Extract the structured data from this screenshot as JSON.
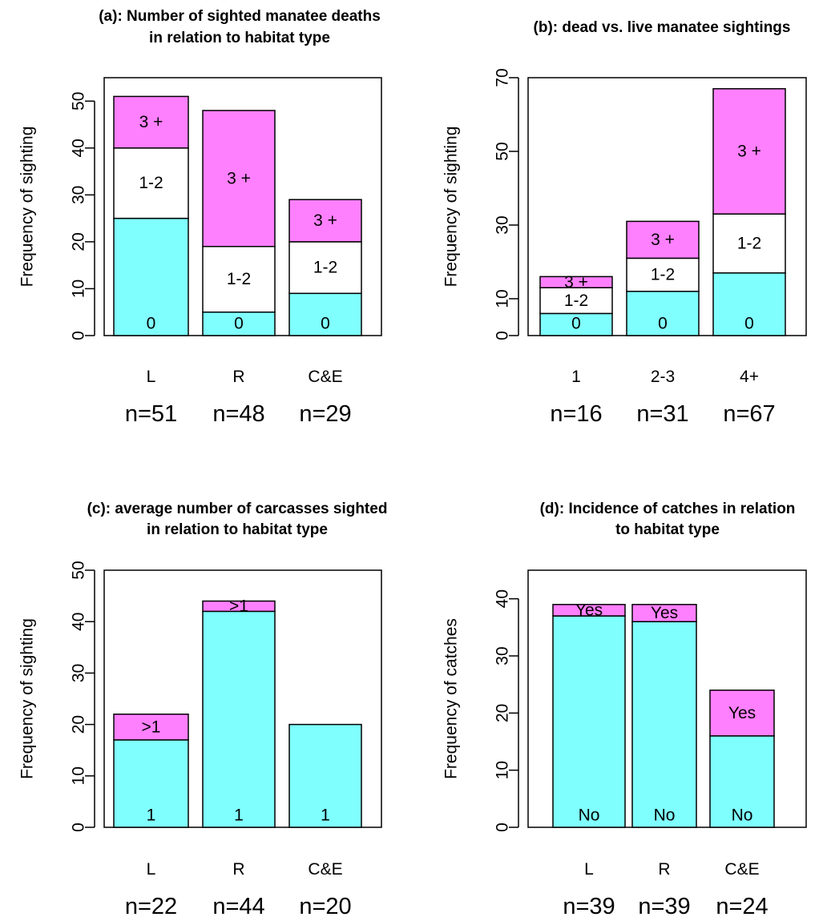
{
  "chart_data": [
    {
      "type": "bar",
      "stacked": true,
      "title": [
        "(a): Number of sighted manatee deaths",
        "in relation to habitat type"
      ],
      "ylabel": "Frequency of sighting",
      "ylim": [
        0,
        55
      ],
      "yticks": [
        "0",
        "10",
        "20",
        "30",
        "40",
        "50"
      ],
      "categories": [
        "L",
        "R",
        "C&E"
      ],
      "n_labels": [
        "n=51",
        "n=48",
        "n=29"
      ],
      "series": [
        {
          "name": "0",
          "color": "#80ffff",
          "values": [
            25,
            5,
            9
          ],
          "labels": [
            "0",
            "0",
            "0"
          ]
        },
        {
          "name": "1-2",
          "color": "#ffffff",
          "values": [
            15,
            14,
            11
          ],
          "labels": [
            "1-2",
            "1-2",
            "1-2"
          ]
        },
        {
          "name": "3 +",
          "color": "#ff80ff",
          "values": [
            11,
            29,
            9
          ],
          "labels": [
            "3 +",
            "3 +",
            "3 +"
          ]
        }
      ]
    },
    {
      "type": "bar",
      "stacked": true,
      "title": [
        "(b): dead vs. live manatee sightings"
      ],
      "ylabel": "Frequency of sighting",
      "ylim": [
        0,
        70
      ],
      "yticks": [
        "0",
        "10",
        "30",
        "50",
        "70"
      ],
      "categories": [
        "1",
        "2-3",
        "4+"
      ],
      "n_labels": [
        "n=16",
        "n=31",
        "n=67"
      ],
      "series": [
        {
          "name": "0",
          "color": "#80ffff",
          "values": [
            6,
            12,
            17
          ],
          "labels": [
            "0",
            "0",
            "0"
          ]
        },
        {
          "name": "1-2",
          "color": "#ffffff",
          "values": [
            7,
            9,
            16
          ],
          "labels": [
            "1-2",
            "1-2",
            "1-2"
          ]
        },
        {
          "name": "3 +",
          "color": "#ff80ff",
          "values": [
            3,
            10,
            34
          ],
          "labels": [
            "3 +",
            "3 +",
            "3 +"
          ]
        }
      ]
    },
    {
      "type": "bar",
      "stacked": true,
      "title": [
        "(c): average number of carcasses sighted",
        "in relation to habitat type"
      ],
      "ylabel": "Frequency of sighting",
      "ylim": [
        0,
        50
      ],
      "yticks": [
        "0",
        "10",
        "20",
        "30",
        "40",
        "50"
      ],
      "categories": [
        "L",
        "R",
        "C&E"
      ],
      "n_labels": [
        "n=22",
        "n=44",
        "n=20"
      ],
      "series": [
        {
          "name": "1",
          "color": "#80ffff",
          "values": [
            17,
            42,
            20
          ],
          "labels": [
            "1",
            "1",
            "1"
          ]
        },
        {
          "name": ">1",
          "color": "#ff80ff",
          "values": [
            5,
            2,
            0
          ],
          "labels": [
            ">1",
            ">1",
            ""
          ]
        }
      ]
    },
    {
      "type": "bar",
      "stacked": true,
      "title": [
        "(d): Incidence of catches in relation",
        "to habitat type"
      ],
      "ylabel": "Frequency of catches",
      "ylim": [
        0,
        45
      ],
      "yticks": [
        "0",
        "10",
        "20",
        "30",
        "40"
      ],
      "categories": [
        "L",
        "R",
        "C&E"
      ],
      "n_labels": [
        "n=39",
        "n=39",
        "n=24"
      ],
      "series": [
        {
          "name": "No",
          "color": "#80ffff",
          "values": [
            37,
            36,
            16
          ],
          "labels": [
            "No",
            "No",
            "No"
          ]
        },
        {
          "name": "Yes",
          "color": "#ff80ff",
          "values": [
            2,
            3,
            8
          ],
          "labels": [
            "Yes",
            "Yes",
            "Yes"
          ]
        }
      ]
    }
  ]
}
